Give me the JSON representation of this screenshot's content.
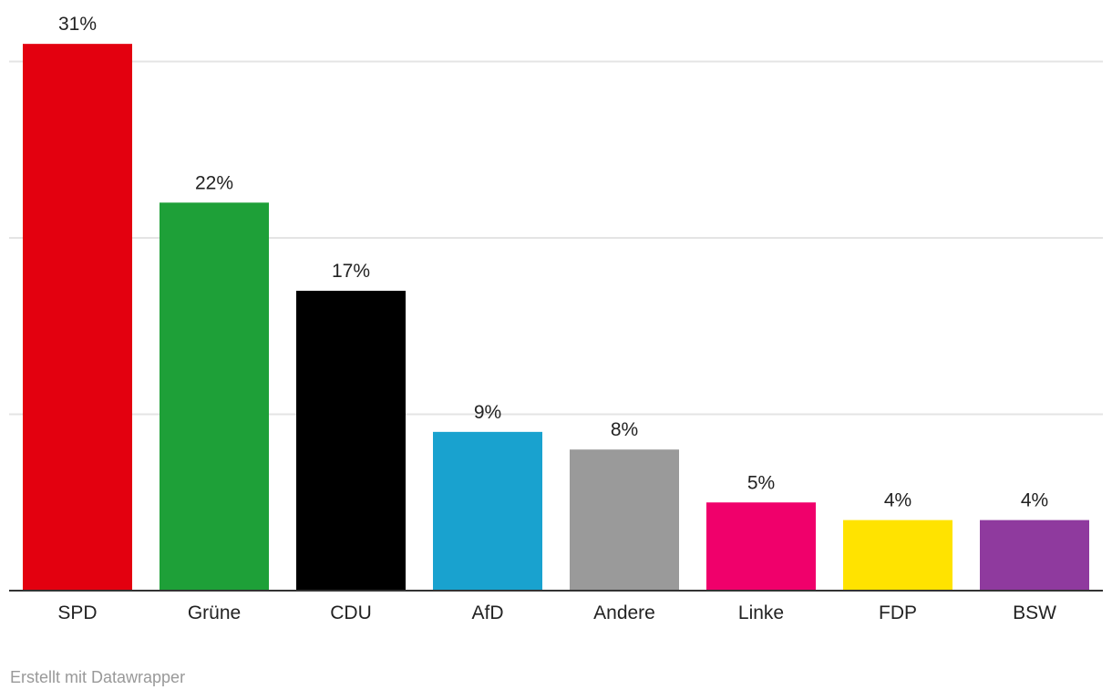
{
  "chart_data": {
    "type": "bar",
    "categories": [
      "SPD",
      "Grüne",
      "CDU",
      "AfD",
      "Andere",
      "Linke",
      "FDP",
      "BSW"
    ],
    "values": [
      31,
      22,
      17,
      9,
      8,
      5,
      4,
      4
    ],
    "value_labels": [
      "31%",
      "22%",
      "17%",
      "9%",
      "8%",
      "5%",
      "4%",
      "4%"
    ],
    "colors": [
      "#e3000f",
      "#1ea038",
      "#000000",
      "#19a2cf",
      "#9a9a9a",
      "#f0006b",
      "#ffe300",
      "#8f3a9e"
    ],
    "ylim": [
      0,
      30.9
    ],
    "gridlines": [
      10,
      20,
      30
    ],
    "grid": true,
    "title": "",
    "xlabel": "",
    "ylabel": ""
  },
  "footer": "Erstellt mit Datawrapper"
}
